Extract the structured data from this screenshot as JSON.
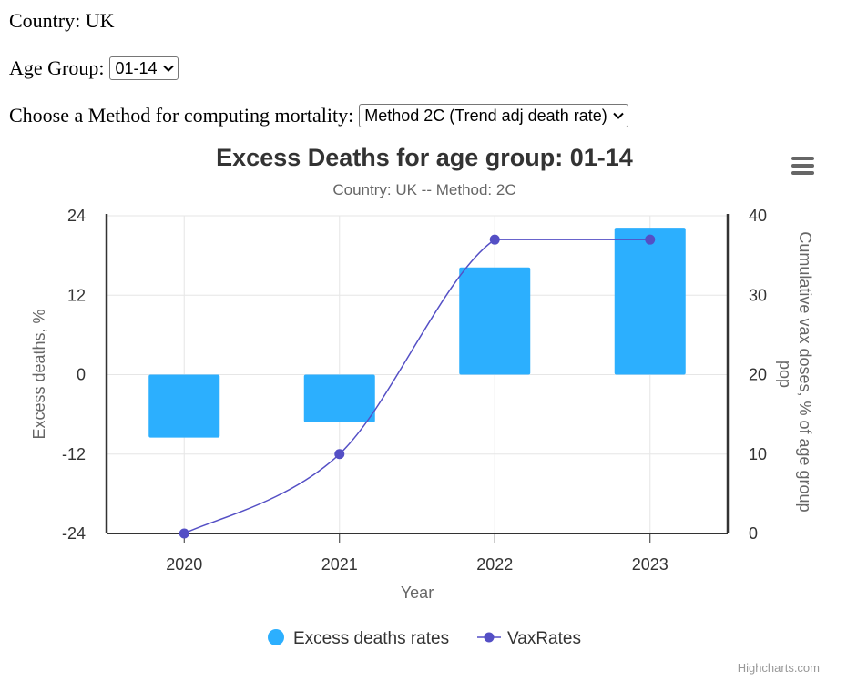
{
  "controls": {
    "country_label": "Country: UK",
    "age_label": "Age Group:",
    "age_value": "01-14",
    "method_label": "Choose a Method for computing mortality:",
    "method_value": "Method 2C (Trend adj death rate)"
  },
  "menu_icon": "hamburger-menu-icon",
  "credit": "Highcharts.com",
  "colors": {
    "bars": "#2caffe",
    "line": "#544fc5"
  },
  "chart_data": {
    "type": "bar",
    "title": "Excess Deaths for age group: 01-14",
    "subtitle": "Country: UK -- Method: 2C",
    "xlabel": "Year",
    "ylabel": "Excess deaths, %",
    "y2label": "Cumulative vax doses, % of age group pop",
    "categories": [
      "2020",
      "2021",
      "2022",
      "2023"
    ],
    "ylim": [
      -24,
      24
    ],
    "yticks": [
      "24",
      "12",
      "0",
      "-12",
      "-24"
    ],
    "y2lim": [
      0,
      40
    ],
    "y2ticks": [
      "40",
      "30",
      "20",
      "10",
      "0"
    ],
    "grid": true,
    "legend_position": "bottom",
    "series": [
      {
        "name": "Excess deaths rates",
        "type": "bar",
        "axis": "left",
        "values": [
          -9.5,
          -7.2,
          16.2,
          22.2
        ]
      },
      {
        "name": "VaxRates",
        "type": "line",
        "axis": "right",
        "values": [
          0,
          10,
          37,
          37
        ]
      }
    ]
  }
}
